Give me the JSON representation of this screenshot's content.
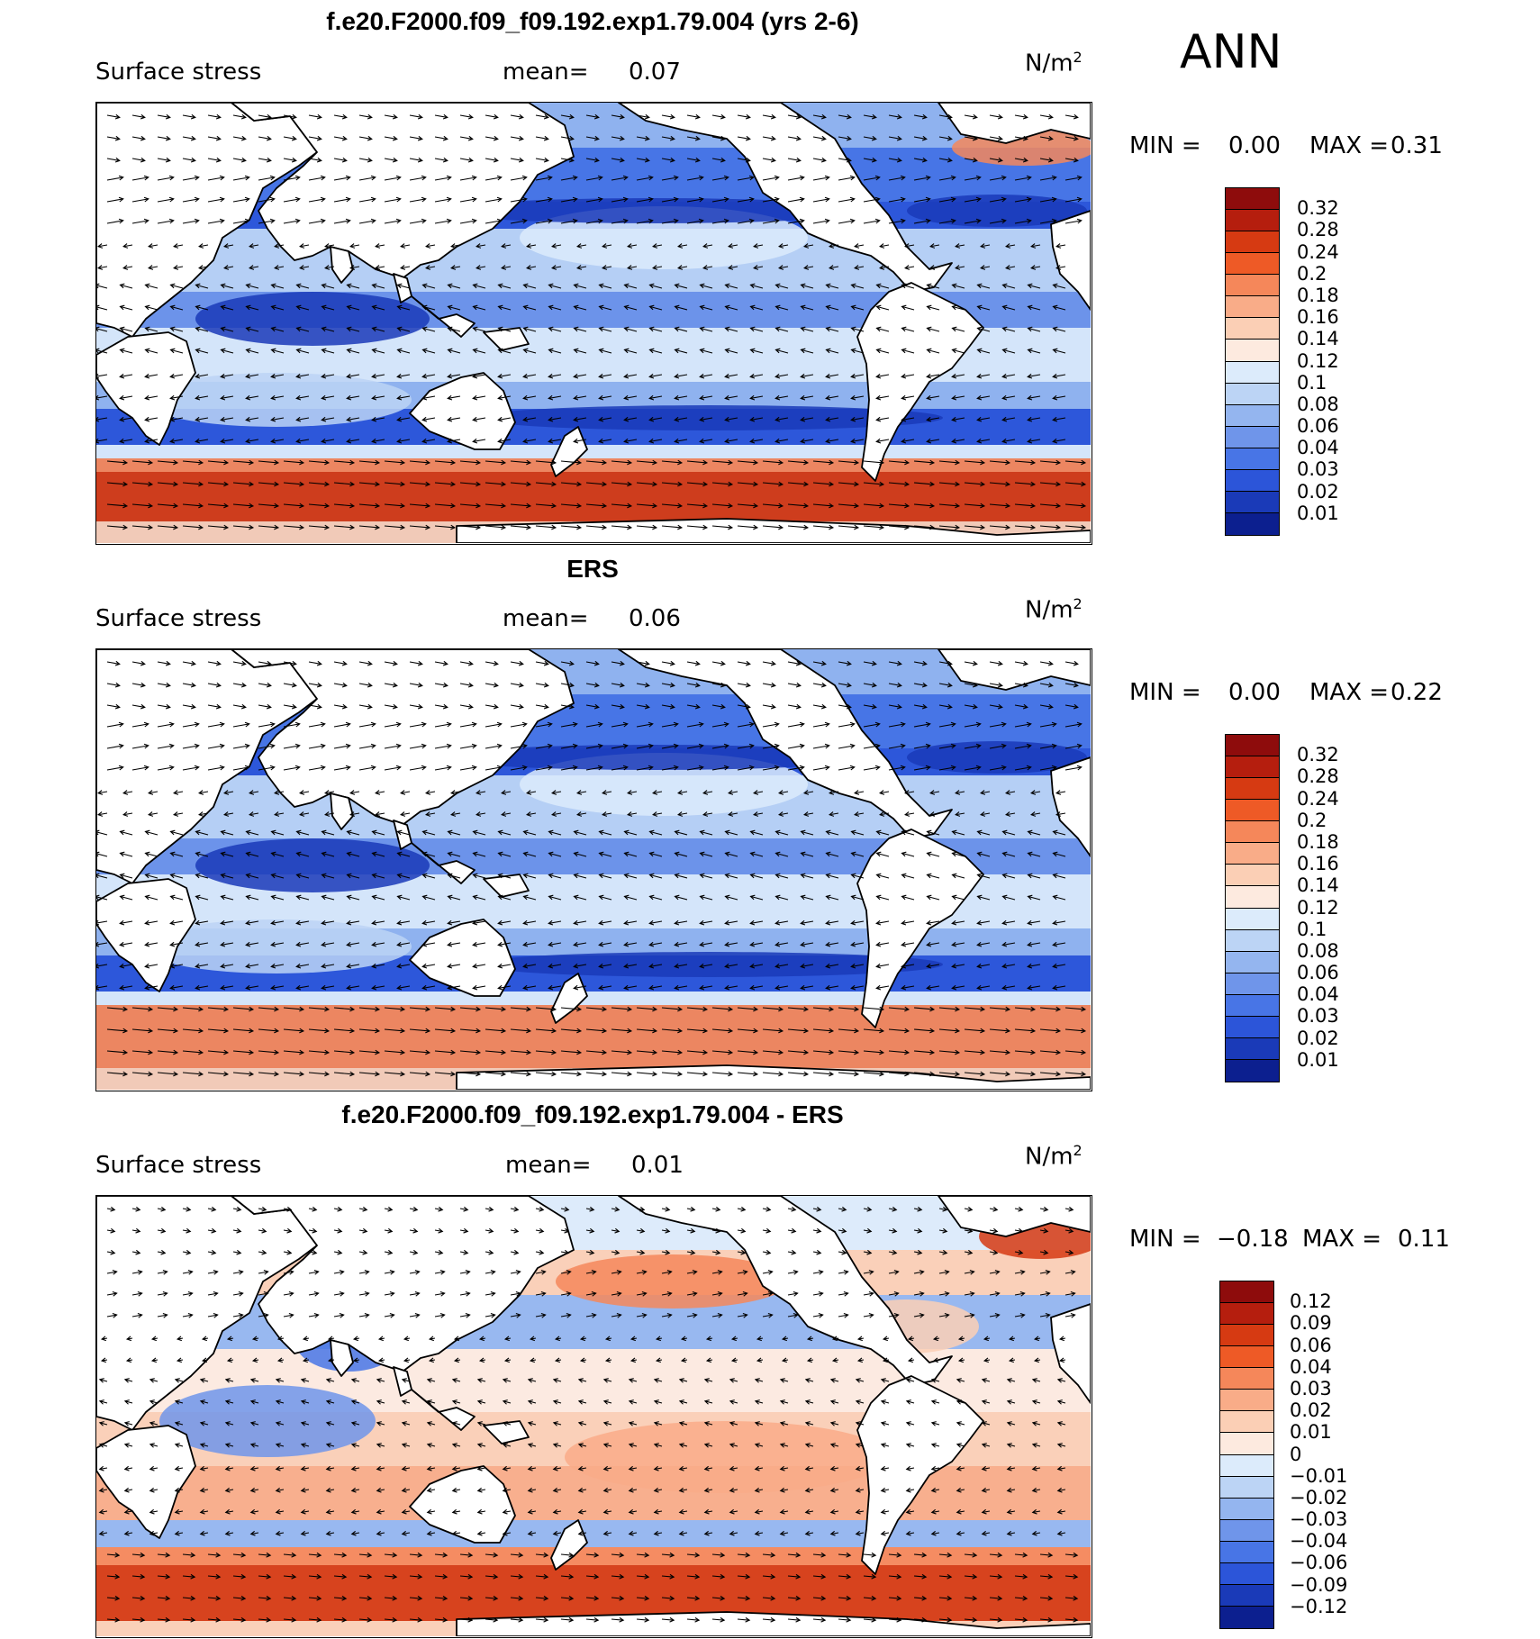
{
  "season": "ANN",
  "chart_data": [
    {
      "type": "heatmap",
      "title": "f.e20.F2000.f09_f09.192.exp1.79.004 (yrs 2-6)",
      "variable": "Surface stress",
      "mean_label": "mean=",
      "mean": "0.07",
      "units": "N/m",
      "units_power": "2",
      "min_label": "MIN =",
      "min": "0.00",
      "max_label": "MAX =",
      "max": "0.31",
      "colorbar_levels": [
        "0.32",
        "0.28",
        "0.24",
        "0.2",
        "0.18",
        "0.16",
        "0.14",
        "0.12",
        "0.1",
        "0.08",
        "0.06",
        "0.04",
        "0.03",
        "0.02",
        "0.01"
      ],
      "colorbar_colors": [
        "#8e0c0c",
        "#b51e0e",
        "#d63a12",
        "#ee5a26",
        "#f5875a",
        "#f9ac88",
        "#fbcfb5",
        "#fdeadf",
        "#dcebfb",
        "#bcd4f5",
        "#94b5ef",
        "#6f95ea",
        "#4875e6",
        "#2c55d9",
        "#1a3ab8",
        "#0c1f8f"
      ]
    },
    {
      "type": "heatmap",
      "title": "ERS",
      "variable": "Surface stress",
      "mean_label": "mean=",
      "mean": "0.06",
      "units": "N/m",
      "units_power": "2",
      "min_label": "MIN =",
      "min": "0.00",
      "max_label": "MAX =",
      "max": "0.22",
      "colorbar_levels": [
        "0.32",
        "0.28",
        "0.24",
        "0.2",
        "0.18",
        "0.16",
        "0.14",
        "0.12",
        "0.1",
        "0.08",
        "0.06",
        "0.04",
        "0.03",
        "0.02",
        "0.01"
      ],
      "colorbar_colors": [
        "#8e0c0c",
        "#b51e0e",
        "#d63a12",
        "#ee5a26",
        "#f5875a",
        "#f9ac88",
        "#fbcfb5",
        "#fdeadf",
        "#dcebfb",
        "#bcd4f5",
        "#94b5ef",
        "#6f95ea",
        "#4875e6",
        "#2c55d9",
        "#1a3ab8",
        "#0c1f8f"
      ]
    },
    {
      "type": "heatmap",
      "title": "f.e20.F2000.f09_f09.192.exp1.79.004 - ERS",
      "variable": "Surface stress",
      "mean_label": "mean=",
      "mean": "0.01",
      "units": "N/m",
      "units_power": "2",
      "min_label": "MIN =",
      "min": "−0.18",
      "max_label": "MAX =",
      "max": "0.11",
      "colorbar_levels": [
        "0.12",
        "0.09",
        "0.06",
        "0.04",
        "0.03",
        "0.02",
        "0.01",
        "0",
        "−0.01",
        "−0.02",
        "−0.03",
        "−0.04",
        "−0.06",
        "−0.09",
        "−0.12"
      ],
      "colorbar_colors": [
        "#8e0c0c",
        "#b51e0e",
        "#d63a12",
        "#ee5a26",
        "#f5875a",
        "#f9ac88",
        "#fbcfb5",
        "#fdeadf",
        "#dcebfb",
        "#bcd4f5",
        "#94b5ef",
        "#6f95ea",
        "#4875e6",
        "#2c55d9",
        "#1a3ab8",
        "#0c1f8f"
      ]
    }
  ]
}
